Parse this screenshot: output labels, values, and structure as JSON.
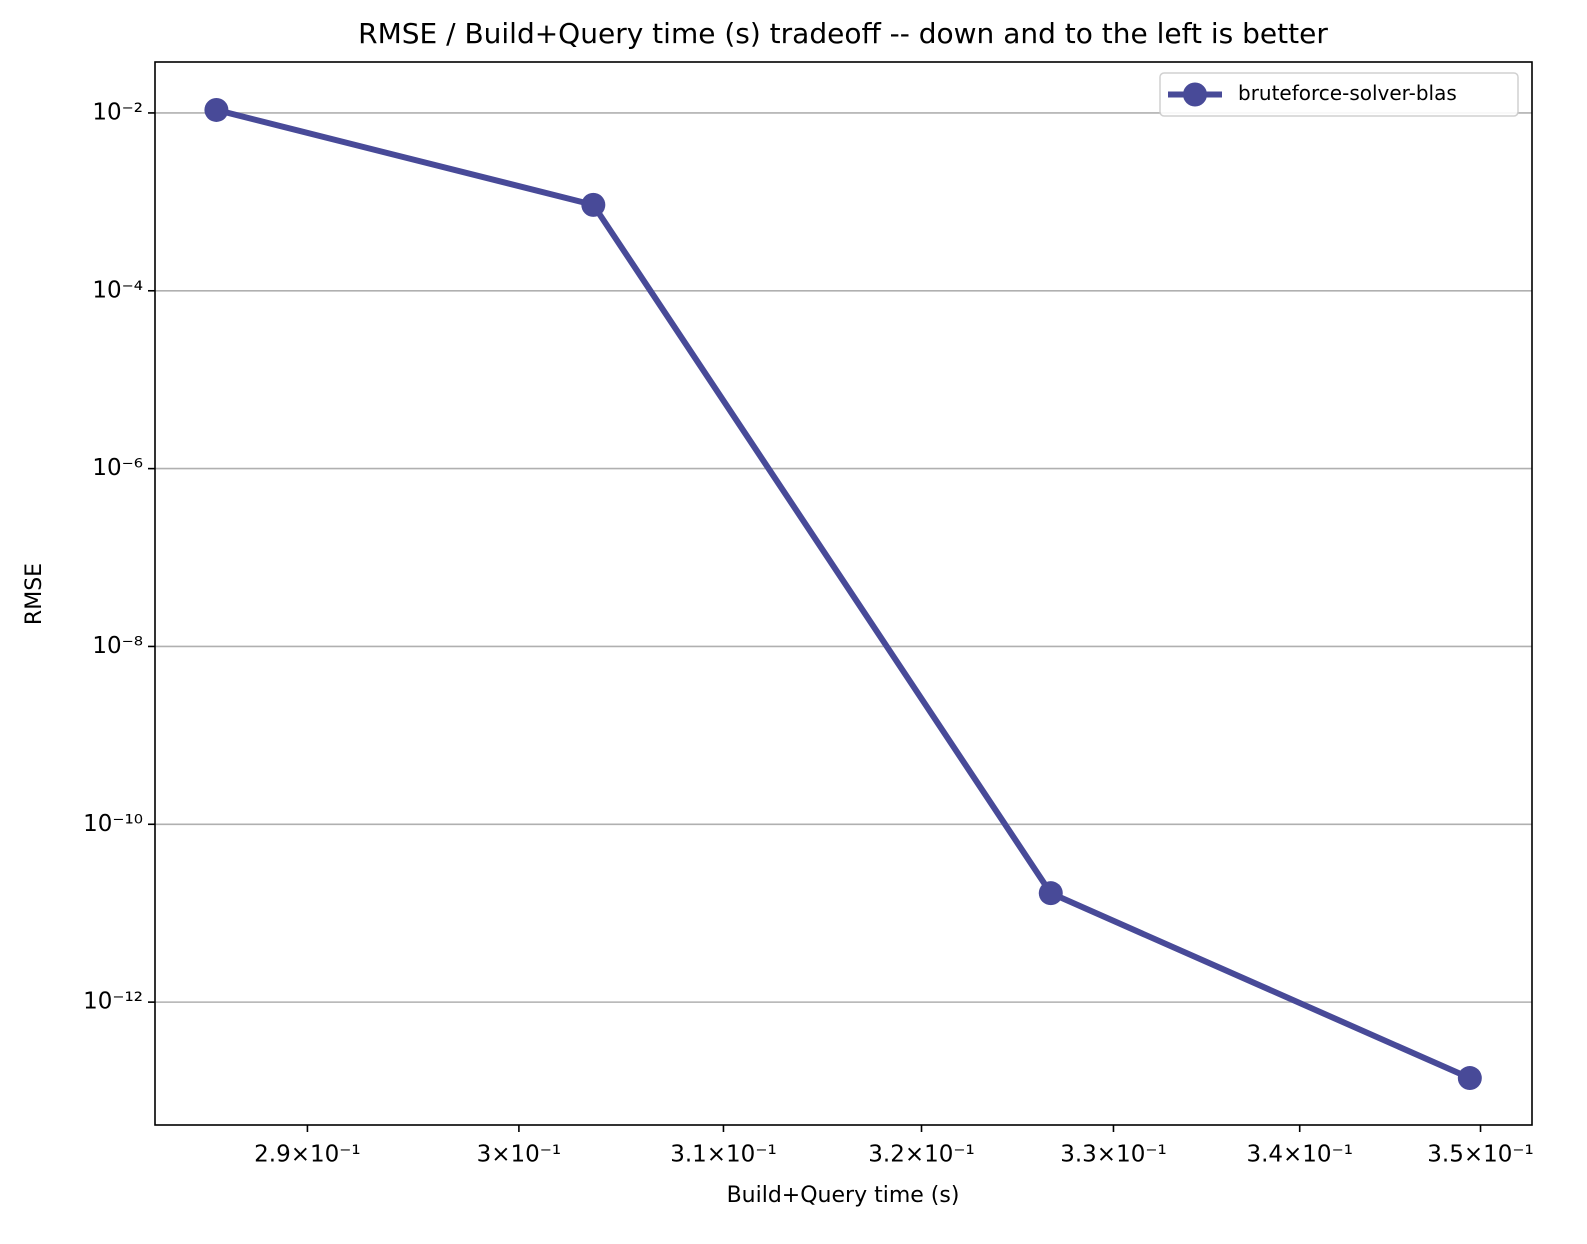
{
  "chart_data": {
    "type": "line",
    "title": "RMSE / Build+Query time (s) tradeoff -- down and to the left is better",
    "xlabel": "Build+Query time (s)",
    "ylabel": "RMSE",
    "xscale": "log",
    "yscale": "log",
    "x": [
      0.2858,
      0.3036,
      0.3267,
      0.3494
    ],
    "series": [
      {
        "name": "bruteforce-solver-blas",
        "color": "#484a98",
        "values": [
          0.0108,
          0.000925,
          1.68e-11,
          1.4e-13
        ]
      }
    ],
    "xlim": [
      0.283,
      0.3529
    ],
    "ylim": [
      4.15e-14,
      0.0374
    ],
    "xticks": [
      {
        "value": 0.29,
        "label": "2.9×10⁻¹"
      },
      {
        "value": 0.3,
        "label": "3×10⁻¹"
      },
      {
        "value": 0.31,
        "label": "3.1×10⁻¹"
      },
      {
        "value": 0.32,
        "label": "3.2×10⁻¹"
      },
      {
        "value": 0.33,
        "label": "3.3×10⁻¹"
      },
      {
        "value": 0.34,
        "label": "3.4×10⁻¹"
      },
      {
        "value": 0.35,
        "label": "3.5×10⁻¹"
      }
    ],
    "yticks": [
      {
        "value": 0.01,
        "label": "10⁻²"
      },
      {
        "value": 0.0001,
        "label": "10⁻⁴"
      },
      {
        "value": 1e-06,
        "label": "10⁻⁶"
      },
      {
        "value": 1e-08,
        "label": "10⁻⁸"
      },
      {
        "value": 1e-10,
        "label": "10⁻¹⁰"
      },
      {
        "value": 1e-12,
        "label": "10⁻¹²"
      }
    ],
    "grid": "y",
    "legend": "upper right"
  }
}
